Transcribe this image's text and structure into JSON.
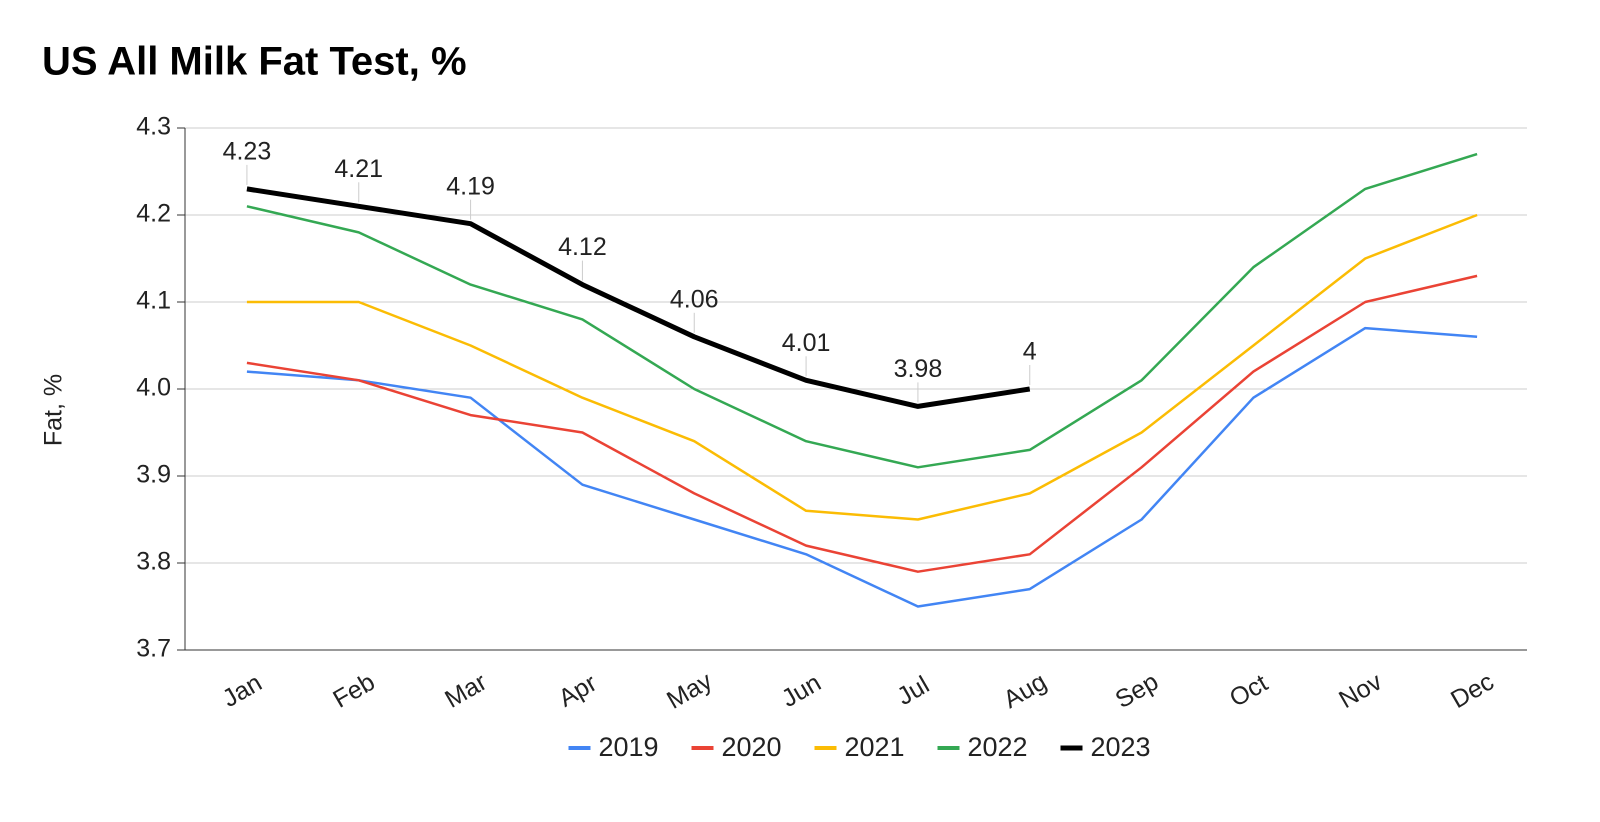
{
  "chart_data": {
    "type": "line",
    "title": "US All Milk Fat Test, %",
    "y_label": "Fat, %",
    "categories": [
      "Jan",
      "Feb",
      "Mar",
      "Apr",
      "May",
      "Jun",
      "Jul",
      "Aug",
      "Sep",
      "Oct",
      "Nov",
      "Dec"
    ],
    "series": [
      {
        "name": "2019",
        "color": "#4285f4",
        "values": [
          4.02,
          4.01,
          3.99,
          3.89,
          3.85,
          3.81,
          3.75,
          3.77,
          3.85,
          3.99,
          4.07,
          4.06
        ]
      },
      {
        "name": "2020",
        "color": "#ea4335",
        "values": [
          4.03,
          4.01,
          3.97,
          3.95,
          3.88,
          3.82,
          3.79,
          3.81,
          3.91,
          4.02,
          4.1,
          4.13
        ]
      },
      {
        "name": "2021",
        "color": "#fbbc04",
        "values": [
          4.1,
          4.1,
          4.05,
          3.99,
          3.94,
          3.86,
          3.85,
          3.88,
          3.95,
          4.05,
          4.15,
          4.2
        ]
      },
      {
        "name": "2022",
        "color": "#34a853",
        "values": [
          4.21,
          4.18,
          4.12,
          4.08,
          4.0,
          3.94,
          3.91,
          3.93,
          4.01,
          4.14,
          4.23,
          4.27
        ]
      },
      {
        "name": "2023",
        "color": "#000000",
        "values": [
          4.23,
          4.21,
          4.19,
          4.12,
          4.06,
          4.01,
          3.98,
          4,
          null,
          null,
          null,
          null
        ],
        "data_labels": true
      }
    ],
    "ylim": [
      3.7,
      4.3
    ],
    "yticks": [
      3.7,
      3.8,
      3.9,
      {
        "value": 4,
        "label": "4.0"
      },
      4.1,
      4.2,
      4.3
    ],
    "grid": true,
    "legend": "bottom"
  }
}
